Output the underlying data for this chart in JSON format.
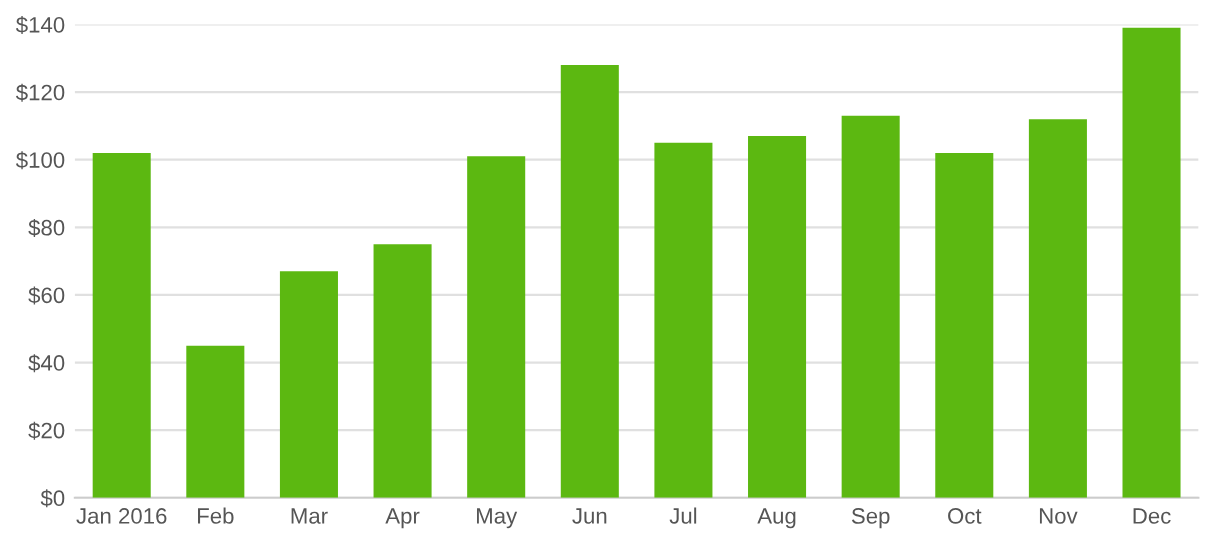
{
  "chart_data": {
    "type": "bar",
    "categories": [
      "Jan 2016",
      "Feb",
      "Mar",
      "Apr",
      "May",
      "Jun",
      "Jul",
      "Aug",
      "Sep",
      "Oct",
      "Nov",
      "Dec"
    ],
    "values": [
      102,
      45,
      67,
      75,
      101,
      128,
      105,
      107,
      113,
      102,
      112,
      139
    ],
    "color": "#5cb811",
    "ylim": [
      0,
      140
    ],
    "yticks": [
      {
        "value": 0,
        "label": "$0"
      },
      {
        "value": 20,
        "label": "$20"
      },
      {
        "value": 40,
        "label": "$40"
      },
      {
        "value": 60,
        "label": "$60"
      },
      {
        "value": 80,
        "label": "$80"
      },
      {
        "value": 100,
        "label": "$100"
      },
      {
        "value": 120,
        "label": "$120"
      },
      {
        "value": 140,
        "label": "$140"
      }
    ],
    "grid": "y"
  }
}
